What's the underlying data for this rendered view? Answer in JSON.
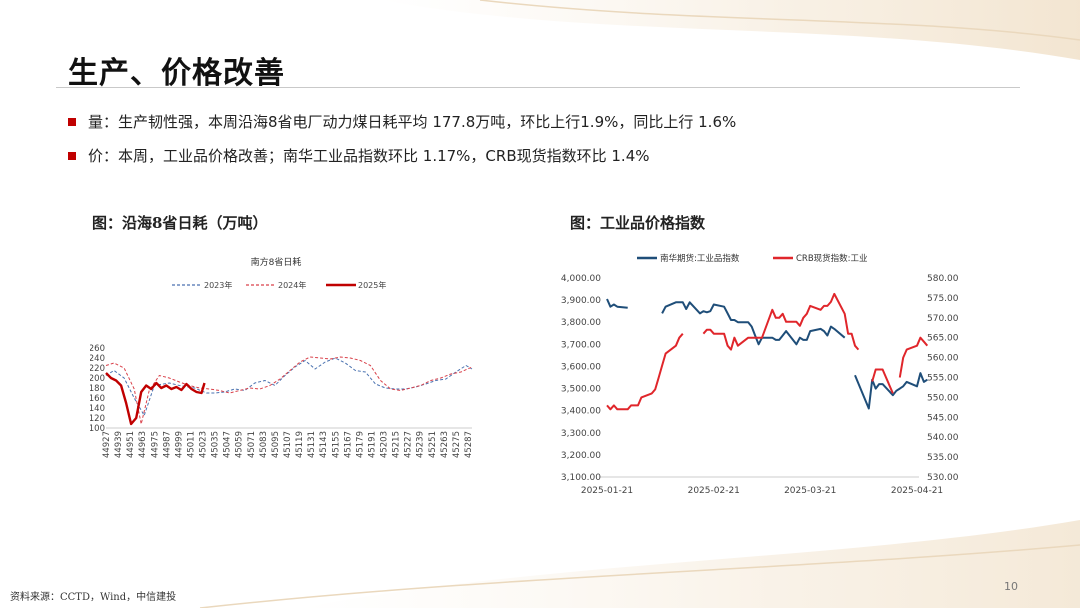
{
  "page": {
    "title": "生产、价格改善",
    "bullets": [
      "量：生产韧性强，本周沿海8省电厂动力煤日耗平均 177.8万吨，环比上行1.9%，同比上行 1.6%",
      "价：本周，工业品价格改善；南华工业品指数环比 1.17%，CRB现货指数环比 1.4%"
    ],
    "source": "资料来源：CCTD，Wind，中信建投",
    "page_number": "10"
  },
  "colors": {
    "accent": "#c00000",
    "navy": "#1f4e79",
    "red_line": "#e0262b",
    "blue_line": "#2f6fb0"
  },
  "chart_data": [
    {
      "type": "line",
      "figure_title": "图：沿海8省日耗（万吨）",
      "title": "南方8省日耗",
      "x_ticks": [
        "44927",
        "44939",
        "44951",
        "44963",
        "44975",
        "44987",
        "44999",
        "45011",
        "45023",
        "45035",
        "45047",
        "45059",
        "45071",
        "45083",
        "45095",
        "45107",
        "45119",
        "45131",
        "45143",
        "45155",
        "45167",
        "45179",
        "45191",
        "45203",
        "45215",
        "45227",
        "45239",
        "45251",
        "45263",
        "45275",
        "45287"
      ],
      "y_ticks": [
        "260",
        "240",
        "220",
        "200",
        "180",
        "160",
        "140",
        "120",
        "100"
      ],
      "ylim": [
        100,
        260
      ],
      "xlim": [
        44927,
        45291
      ],
      "legend_position": "top",
      "series": [
        {
          "name": "2023年",
          "style": "dashed",
          "color": "#4a72b0",
          "x": [
            44927,
            44935,
            44945,
            44955,
            44965,
            44975,
            44990,
            45000,
            45015,
            45027,
            45035,
            45045,
            45055,
            45065,
            45075,
            45085,
            45095,
            45105,
            45115,
            45125,
            45135,
            45145,
            45155,
            45165,
            45175,
            45185,
            45195,
            45205,
            45215,
            45225,
            45235,
            45245,
            45255,
            45265,
            45275,
            45285,
            45291
          ],
          "values": [
            205,
            215,
            200,
            160,
            125,
            185,
            190,
            185,
            180,
            170,
            170,
            172,
            178,
            175,
            190,
            195,
            185,
            205,
            222,
            235,
            218,
            232,
            240,
            230,
            215,
            212,
            188,
            180,
            178,
            178,
            182,
            188,
            195,
            198,
            212,
            225,
            218
          ]
        },
        {
          "name": "2024年",
          "style": "dashed",
          "color": "#d9414a",
          "x": [
            44927,
            44935,
            44945,
            44955,
            44962,
            44970,
            44980,
            44990,
            45000,
            45010,
            45020,
            45030,
            45040,
            45050,
            45060,
            45070,
            45080,
            45090,
            45100,
            45110,
            45120,
            45130,
            45140,
            45150,
            45160,
            45170,
            45180,
            45190,
            45200,
            45210,
            45220,
            45230,
            45240,
            45250,
            45260,
            45270,
            45280,
            45291
          ],
          "values": [
            225,
            230,
            220,
            178,
            108,
            175,
            205,
            200,
            192,
            185,
            180,
            178,
            175,
            170,
            175,
            180,
            178,
            185,
            198,
            215,
            232,
            242,
            240,
            238,
            242,
            240,
            235,
            225,
            195,
            178,
            175,
            180,
            185,
            195,
            200,
            208,
            212,
            222
          ]
        },
        {
          "name": "2025年",
          "style": "solid",
          "color": "#c00000",
          "x": [
            44927,
            44932,
            44937,
            44942,
            44947,
            44952,
            44957,
            44962,
            44967,
            44972,
            44977,
            44982,
            44987,
            44992,
            44997,
            45002,
            45007,
            45012,
            45017,
            45022,
            45025
          ],
          "values": [
            210,
            200,
            195,
            185,
            150,
            108,
            120,
            172,
            185,
            178,
            190,
            180,
            185,
            178,
            182,
            176,
            188,
            178,
            172,
            170,
            190
          ]
        }
      ]
    },
    {
      "type": "line",
      "figure_title": "图：工业品价格指数",
      "x_ticks": [
        "2025-01-21",
        "2025-02-21",
        "2025-03-21",
        "2025-04-21"
      ],
      "y_left_ticks": [
        "4,000.00",
        "3,900.00",
        "3,800.00",
        "3,700.00",
        "3,600.00",
        "3,500.00",
        "3,400.00",
        "3,300.00",
        "3,200.00",
        "3,100.00"
      ],
      "y_right_ticks": [
        "580.00",
        "575.00",
        "570.00",
        "565.00",
        "560.00",
        "555.00",
        "550.00",
        "545.00",
        "540.00",
        "535.00",
        "530.00"
      ],
      "ylim_left": [
        3100,
        4000
      ],
      "ylim_right": [
        530,
        580
      ],
      "legend_position": "top",
      "series": [
        {
          "name": "南华期货:工业品指数",
          "axis": "left",
          "color": "#1f4e79",
          "segments": [
            {
              "x": [
                "2025-01-21",
                "2025-01-22",
                "2025-01-23",
                "2025-01-24",
                "2025-01-27"
              ],
              "values": [
                3905,
                3870,
                3880,
                3870,
                3865
              ]
            },
            {
              "x": [
                "2025-02-06",
                "2025-02-07",
                "2025-02-10",
                "2025-02-11",
                "2025-02-12",
                "2025-02-13",
                "2025-02-14",
                "2025-02-17",
                "2025-02-18",
                "2025-02-19",
                "2025-02-20",
                "2025-02-21",
                "2025-02-24",
                "2025-02-25",
                "2025-02-26",
                "2025-02-27",
                "2025-02-28",
                "2025-03-03",
                "2025-03-04",
                "2025-03-05",
                "2025-03-06",
                "2025-03-07",
                "2025-03-10",
                "2025-03-11",
                "2025-03-12",
                "2025-03-13",
                "2025-03-14",
                "2025-03-17",
                "2025-03-18",
                "2025-03-19",
                "2025-03-20",
                "2025-03-21",
                "2025-03-24",
                "2025-03-25",
                "2025-03-26",
                "2025-03-27",
                "2025-03-28",
                "2025-03-31"
              ],
              "values": [
                3840,
                3870,
                3890,
                3890,
                3890,
                3860,
                3890,
                3840,
                3850,
                3845,
                3850,
                3880,
                3870,
                3840,
                3810,
                3810,
                3800,
                3800,
                3780,
                3740,
                3700,
                3730,
                3730,
                3720,
                3720,
                3740,
                3760,
                3700,
                3730,
                3720,
                3720,
                3760,
                3770,
                3760,
                3740,
                3780,
                3770,
                3730
              ]
            },
            {
              "x": [
                "2025-04-03",
                "2025-04-07",
                "2025-04-08",
                "2025-04-09",
                "2025-04-10",
                "2025-04-11",
                "2025-04-14",
                "2025-04-15",
                "2025-04-16",
                "2025-04-17",
                "2025-04-18",
                "2025-04-21",
                "2025-04-22",
                "2025-04-23",
                "2025-04-24"
              ],
              "values": [
                3560,
                3410,
                3540,
                3500,
                3520,
                3520,
                3470,
                3490,
                3500,
                3510,
                3530,
                3510,
                3570,
                3530,
                3540
              ]
            }
          ]
        },
        {
          "name": "CRB现货指数:工业",
          "axis": "right",
          "color": "#e0262b",
          "segments": [
            {
              "x": [
                "2025-01-21",
                "2025-01-22",
                "2025-01-23",
                "2025-01-24",
                "2025-01-27",
                "2025-01-28",
                "2025-01-29",
                "2025-01-30",
                "2025-01-31",
                "2025-02-03",
                "2025-02-04",
                "2025-02-05",
                "2025-02-06",
                "2025-02-07",
                "2025-02-10",
                "2025-02-11",
                "2025-02-12"
              ],
              "values": [
                548,
                547,
                548,
                547,
                547,
                548,
                548,
                548,
                550,
                551,
                552,
                555,
                558,
                561,
                563,
                565,
                566
              ]
            },
            {
              "x": [
                "2025-02-18",
                "2025-02-19",
                "2025-02-20",
                "2025-02-21",
                "2025-02-24",
                "2025-02-25",
                "2025-02-26",
                "2025-02-27",
                "2025-02-28",
                "2025-03-03",
                "2025-03-04",
                "2025-03-05",
                "2025-03-06",
                "2025-03-07",
                "2025-03-10",
                "2025-03-11",
                "2025-03-12",
                "2025-03-13",
                "2025-03-14",
                "2025-03-17",
                "2025-03-18",
                "2025-03-19",
                "2025-03-20",
                "2025-03-21",
                "2025-03-24",
                "2025-03-25",
                "2025-03-26",
                "2025-03-27",
                "2025-03-28",
                "2025-03-31",
                "2025-04-01",
                "2025-04-02",
                "2025-04-03",
                "2025-04-04"
              ],
              "values": [
                566,
                567,
                567,
                566,
                566,
                563,
                562,
                565,
                563,
                565,
                565,
                565,
                565,
                565,
                572,
                570,
                570,
                571,
                569,
                569,
                568,
                570,
                571,
                573,
                572,
                573,
                573,
                574,
                576,
                571,
                566,
                566,
                563,
                562
              ]
            },
            {
              "x": [
                "2025-04-08",
                "2025-04-09",
                "2025-04-10",
                "2025-04-11",
                "2025-04-14"
              ],
              "values": [
                554,
                557,
                557,
                557,
                551
              ]
            },
            {
              "x": [
                "2025-04-16",
                "2025-04-17",
                "2025-04-18",
                "2025-04-21",
                "2025-04-22",
                "2025-04-23",
                "2025-04-24"
              ],
              "values": [
                555,
                560,
                562,
                563,
                565,
                564,
                563
              ]
            }
          ]
        }
      ]
    }
  ]
}
